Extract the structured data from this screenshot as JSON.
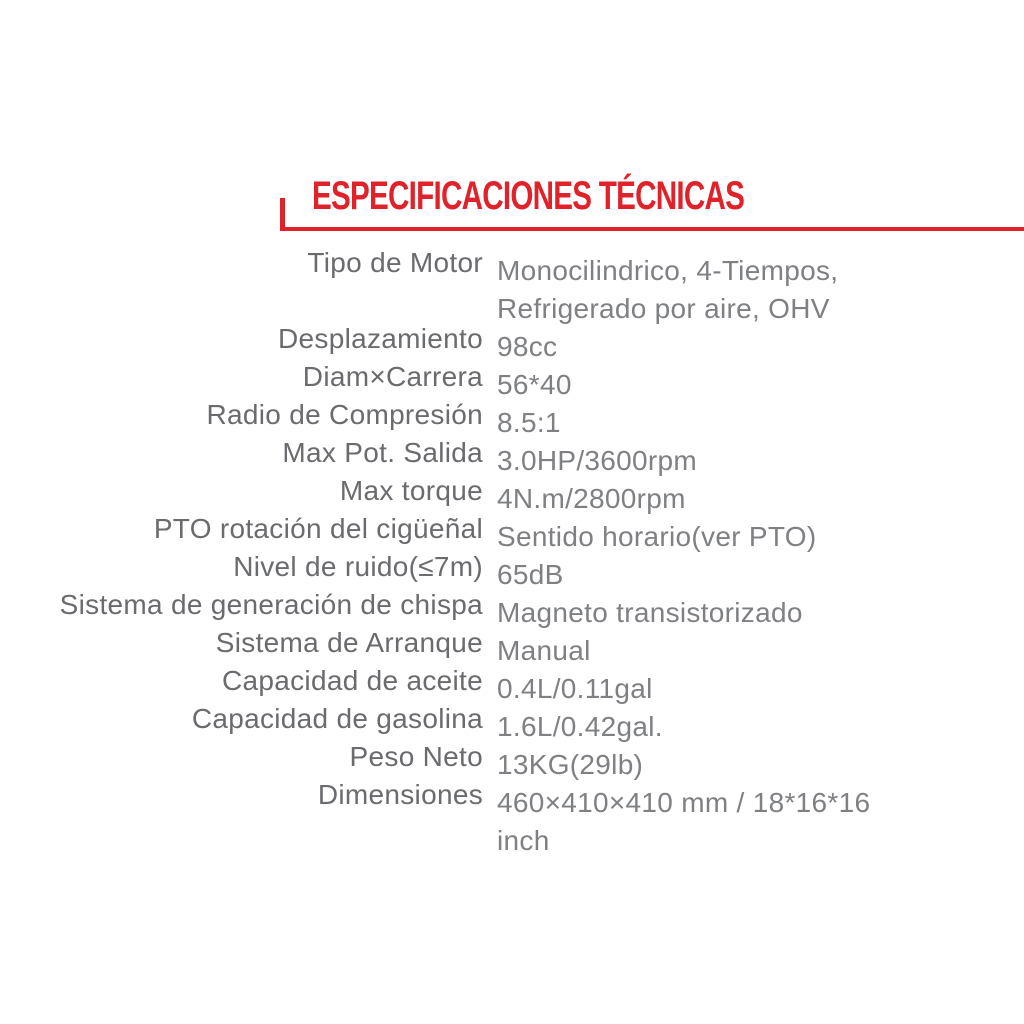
{
  "header": {
    "title": "ESPECIFICACIONES TÉCNICAS"
  },
  "colors": {
    "accent_red": "#e0232a",
    "label_gray": "#6a6b6e",
    "value_gray": "#7e8083",
    "background": "#ffffff"
  },
  "spec_table": {
    "rows": [
      {
        "label": "Tipo de Motor",
        "value": "Monocilindrico, 4-Tiempos, Refrigerado por aire, OHV"
      },
      {
        "label": "Desplazamiento",
        "value": "98cc"
      },
      {
        "label": "Diam×Carrera",
        "value": "56*40"
      },
      {
        "label": "Radio de Compresión",
        "value": "8.5:1"
      },
      {
        "label": "Max Pot. Salida",
        "value": "3.0HP/3600rpm"
      },
      {
        "label": "Max torque",
        "value": "4N.m/2800rpm"
      },
      {
        "label": "PTO rotación del cigüeñal",
        "value": "Sentido horario(ver PTO)"
      },
      {
        "label": "Nivel de ruido(≤7m)",
        "value": "65dB"
      },
      {
        "label": "Sistema de generación de chispa",
        "value": "Magneto transistorizado"
      },
      {
        "label": "Sistema de Arranque",
        "value": "Manual"
      },
      {
        "label": "Capacidad de aceite",
        "value": "0.4L/0.11gal"
      },
      {
        "label": "Capacidad de gasolina",
        "value": "1.6L/0.42gal."
      },
      {
        "label": "Peso Neto",
        "value": "13KG(29lb)"
      },
      {
        "label": "Dimensiones",
        "value": "460×410×410 mm / 18*16*16 inch"
      }
    ]
  }
}
